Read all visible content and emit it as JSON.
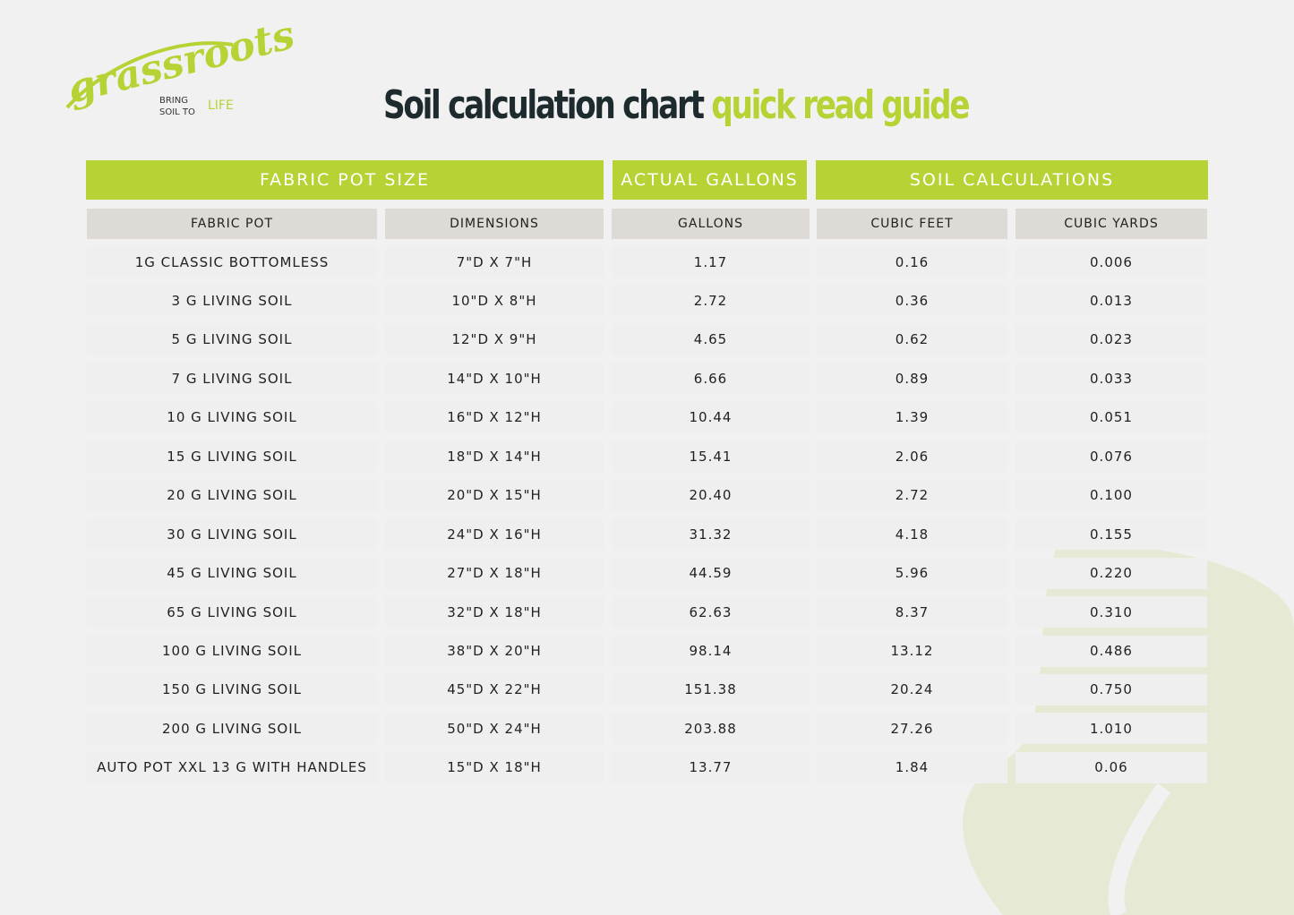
{
  "logo": {
    "brand": "grassroots",
    "tagline": [
      "BRING",
      "SOIL TO",
      "LIFE"
    ]
  },
  "header": {
    "title": "Soil calculation chart",
    "highlight": "quick read guide"
  },
  "table": {
    "groups": [
      "FABRIC POT SIZE",
      "ACTUAL GALLONS",
      "SOIL CALCULATIONS"
    ],
    "columns": [
      "FABRIC POT",
      "DIMENSIONS",
      "GALLONS",
      "CUBIC FEET",
      "CUBIC YARDS"
    ],
    "rows": [
      [
        "1G CLASSIC BOTTOMLESS",
        "7\"D X 7\"H",
        "1.17",
        "0.16",
        "0.006"
      ],
      [
        "3 G LIVING SOIL",
        "10\"D X 8\"H",
        "2.72",
        "0.36",
        "0.013"
      ],
      [
        "5 G LIVING SOIL",
        "12\"D X 9\"H",
        "4.65",
        "0.62",
        "0.023"
      ],
      [
        "7 G LIVING SOIL",
        "14\"D X 10\"H",
        "6.66",
        "0.89",
        "0.033"
      ],
      [
        "10 G LIVING SOIL",
        "16\"D X 12\"H",
        "10.44",
        "1.39",
        "0.051"
      ],
      [
        "15 G LIVING SOIL",
        "18\"D X 14\"H",
        "15.41",
        "2.06",
        "0.076"
      ],
      [
        "20 G LIVING SOIL",
        "20\"D X 15\"H",
        "20.40",
        "2.72",
        "0.100"
      ],
      [
        "30 G LIVING SOIL",
        "24\"D X 16\"H",
        "31.32",
        "4.18",
        "0.155"
      ],
      [
        "45 G LIVING SOIL",
        "27\"D X 18\"H",
        "44.59",
        "5.96",
        "0.220"
      ],
      [
        "65 G LIVING SOIL",
        "32\"D X 18\"H",
        "62.63",
        "8.37",
        "0.310"
      ],
      [
        "100 G LIVING SOIL",
        "38\"D X 20\"H",
        "98.14",
        "13.12",
        "0.486"
      ],
      [
        "150 G LIVING SOIL",
        "45\"D X 22\"H",
        "151.38",
        "20.24",
        "0.750"
      ],
      [
        "200 G LIVING SOIL",
        "50\"D X 24\"H",
        "203.88",
        "27.26",
        "1.010"
      ],
      [
        "AUTO POT XXL 13 G WITH HANDLES",
        "15\"D X 18\"H",
        "13.77",
        "1.84",
        "0.06"
      ]
    ]
  }
}
